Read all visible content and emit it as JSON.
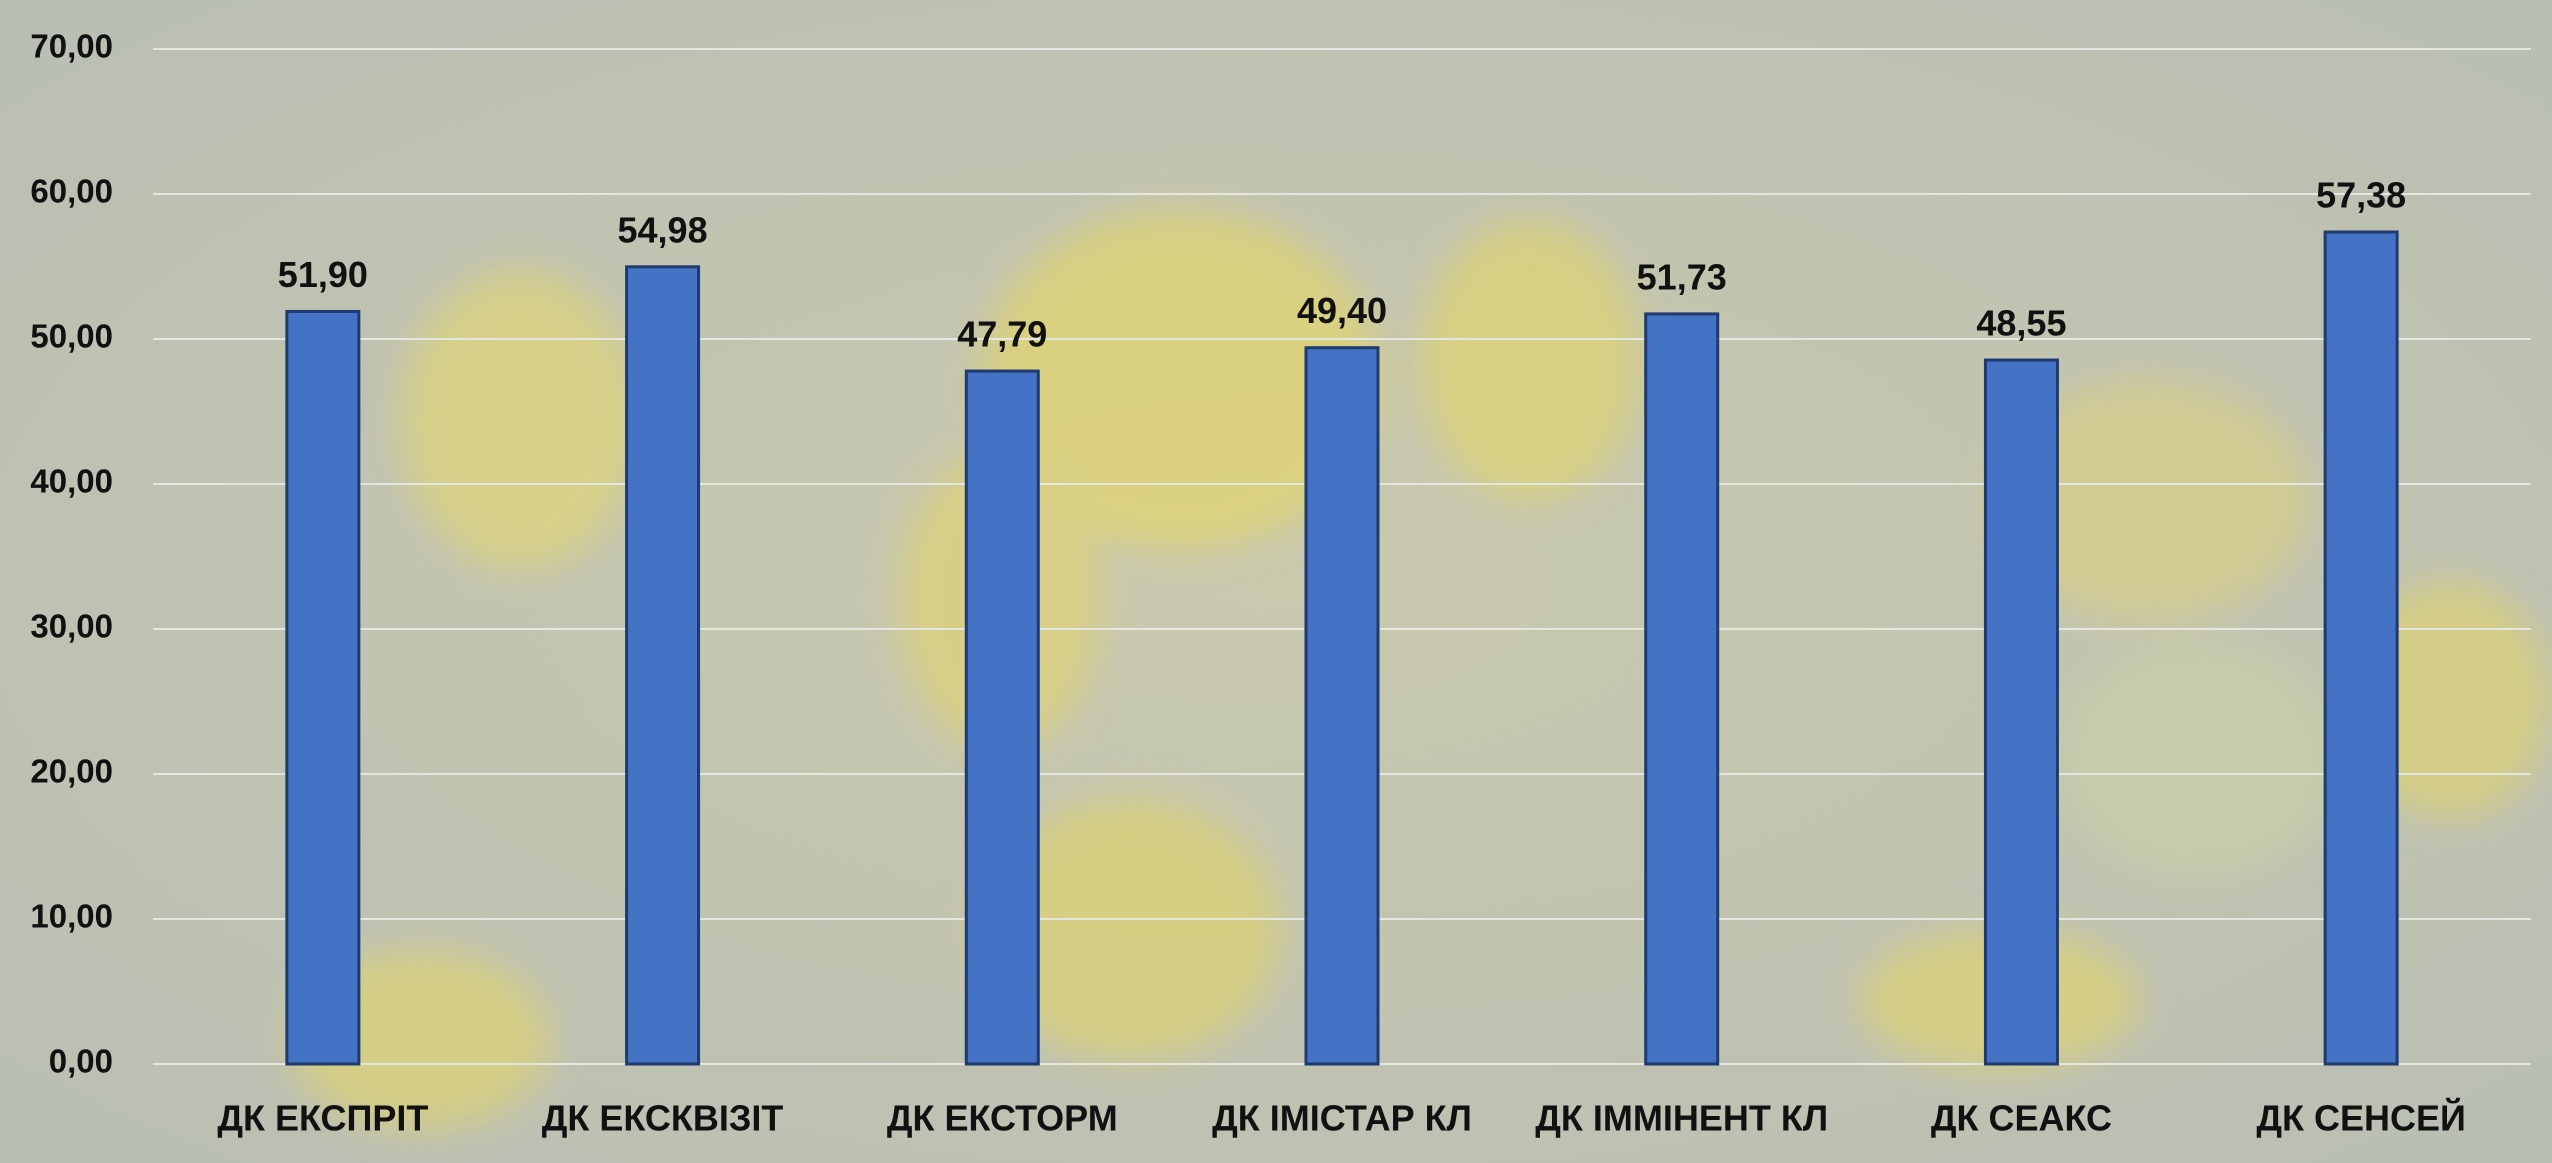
{
  "chart_data": {
    "type": "bar",
    "categories": [
      "ДК ЕКСПРІТ",
      "ДК ЕКСКВІЗІТ",
      "ДК ЕКСТОРМ",
      "ДК ІМІСТАР КЛ",
      "ДК ІММІНЕНТ КЛ",
      "ДК СЕАКС",
      "ДК СЕНСЕЙ"
    ],
    "values": [
      51.9,
      54.98,
      47.79,
      49.4,
      51.73,
      48.55,
      57.38
    ],
    "value_labels": [
      "51,90",
      "54,98",
      "47,79",
      "49,40",
      "51,73",
      "48,55",
      "57,38"
    ],
    "color": "#4472c4",
    "ylim": [
      0,
      70
    ],
    "yticks": [
      {
        "value": 0,
        "label": "0,00"
      },
      {
        "value": 10,
        "label": "10,00"
      },
      {
        "value": 20,
        "label": "20,00"
      },
      {
        "value": 30,
        "label": "30,00"
      },
      {
        "value": 40,
        "label": "40,00"
      },
      {
        "value": 50,
        "label": "50,00"
      },
      {
        "value": 60,
        "label": "60,00"
      },
      {
        "value": 70,
        "label": "70,00"
      }
    ],
    "grid": true
  }
}
